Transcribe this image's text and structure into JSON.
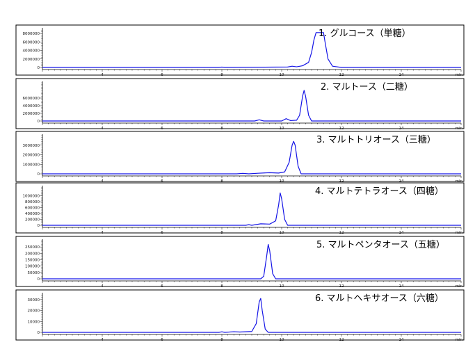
{
  "chart_data": [
    {
      "type": "line",
      "title": "1. グルコース（単糖）",
      "x_unit": "min",
      "xlim": [
        2,
        16
      ],
      "x_ticks": [
        4,
        6,
        8,
        10,
        12,
        14
      ],
      "x_tick_labels": [
        "4",
        "6",
        "8",
        "10",
        "12",
        "14"
      ],
      "ylim": [
        0,
        9000000
      ],
      "y_ticks": [
        0,
        2000000,
        4000000,
        6000000,
        8000000
      ],
      "y_tick_labels": [
        "0",
        "2000000",
        "4000000",
        "6000000",
        "8000000"
      ],
      "x": [
        2,
        7.9,
        8.0,
        8.1,
        10.2,
        10.35,
        10.5,
        10.7,
        10.9,
        11.0,
        11.08,
        11.15,
        11.2,
        11.3,
        11.4,
        11.45,
        11.55,
        11.7,
        12.0,
        16
      ],
      "y": [
        0,
        0,
        80000,
        0,
        100000,
        300000,
        150000,
        400000,
        1200000,
        3500000,
        6500000,
        8200000,
        8200000,
        8200000,
        8200000,
        6000000,
        2000000,
        300000,
        0,
        0
      ],
      "series_color": "#1414e6"
    },
    {
      "type": "line",
      "title": "2. マルトース（二糖）",
      "x_unit": "min",
      "xlim": [
        2,
        16
      ],
      "x_ticks": [
        4,
        6,
        8,
        10,
        12,
        14
      ],
      "x_tick_labels": [
        "4",
        "6",
        "8",
        "10",
        "12",
        "14"
      ],
      "ylim": [
        0,
        10000000
      ],
      "y_ticks": [
        0,
        2000000,
        4000000,
        6000000
      ],
      "y_tick_labels": [
        "0",
        "2000000",
        "4000000",
        "6000000"
      ],
      "x": [
        2,
        9.1,
        9.25,
        9.4,
        9.6,
        10.0,
        10.15,
        10.3,
        10.5,
        10.6,
        10.7,
        10.75,
        10.8,
        10.9,
        11.0,
        16
      ],
      "y": [
        0,
        0,
        300000,
        0,
        0,
        0,
        600000,
        100000,
        200000,
        1500000,
        6500000,
        8000000,
        6500000,
        1500000,
        0,
        0
      ],
      "series_color": "#1414e6"
    },
    {
      "type": "line",
      "title": "3. マルトトリオース（三糖）",
      "x_unit": "min",
      "xlim": [
        2,
        16
      ],
      "x_ticks": [
        4,
        6,
        8,
        10,
        12,
        14
      ],
      "x_tick_labels": [
        "4",
        "6",
        "8",
        "10",
        "12",
        "14"
      ],
      "ylim": [
        0,
        4000000
      ],
      "y_ticks": [
        0,
        1000000,
        2000000,
        3000000
      ],
      "y_tick_labels": [
        "0",
        "1000000",
        "2000000",
        "3000000"
      ],
      "x": [
        2,
        8.5,
        8.7,
        8.9,
        9.2,
        9.6,
        9.9,
        10.1,
        10.25,
        10.35,
        10.4,
        10.45,
        10.55,
        10.65,
        16
      ],
      "y": [
        0,
        0,
        50000,
        0,
        60000,
        120000,
        80000,
        200000,
        1200000,
        3000000,
        3400000,
        3000000,
        800000,
        0,
        0
      ],
      "series_color": "#1414e6"
    },
    {
      "type": "line",
      "title": "4. マルトテトラオース（四糖）",
      "x_unit": "min",
      "xlim": [
        2,
        16
      ],
      "x_ticks": [
        4,
        6,
        8,
        10,
        12,
        14
      ],
      "x_tick_labels": [
        "4",
        "6",
        "8",
        "10",
        "12",
        "14"
      ],
      "ylim": [
        0,
        1300000
      ],
      "y_ticks": [
        0,
        200000,
        400000,
        600000,
        800000,
        1000000
      ],
      "y_tick_labels": [
        "0",
        "200000",
        "400000",
        "600000",
        "800000",
        "1000000"
      ],
      "x": [
        2,
        8.8,
        8.9,
        9.0,
        9.3,
        9.6,
        9.8,
        9.9,
        9.95,
        10.0,
        10.1,
        10.2,
        16
      ],
      "y": [
        0,
        0,
        20000,
        0,
        50000,
        40000,
        150000,
        700000,
        1100000,
        900000,
        200000,
        0,
        0
      ],
      "series_color": "#1414e6"
    },
    {
      "type": "line",
      "title": "5. マルトペンタオース（五糖）",
      "x_unit": "min",
      "xlim": [
        2,
        16
      ],
      "x_ticks": [
        4,
        6,
        8,
        10,
        12,
        14
      ],
      "x_tick_labels": [
        "4",
        "6",
        "8",
        "10",
        "12",
        "14"
      ],
      "ylim": [
        0,
        300000
      ],
      "y_ticks": [
        0,
        50000,
        100000,
        150000,
        200000,
        250000
      ],
      "y_tick_labels": [
        "0",
        "50000",
        "100000",
        "150000",
        "200000",
        "250000"
      ],
      "x": [
        2,
        9.3,
        9.4,
        9.5,
        9.55,
        9.6,
        9.7,
        9.8,
        16
      ],
      "y": [
        0,
        0,
        20000,
        180000,
        270000,
        220000,
        40000,
        0,
        0
      ],
      "series_color": "#1414e6"
    },
    {
      "type": "line",
      "title": "6. マルトヘキサオース（六糖）",
      "x_unit": "min",
      "xlim": [
        2,
        16
      ],
      "x_ticks": [
        4,
        6,
        8,
        10,
        12,
        14
      ],
      "x_tick_labels": [
        "4",
        "6",
        "8",
        "10",
        "12",
        "14"
      ],
      "ylim": [
        0,
        35000
      ],
      "y_ticks": [
        0,
        10000,
        20000,
        30000
      ],
      "y_tick_labels": [
        "0",
        "10000",
        "20000",
        "30000"
      ],
      "x": [
        2,
        7.9,
        8.0,
        8.1,
        8.4,
        8.6,
        9.0,
        9.15,
        9.25,
        9.3,
        9.35,
        9.45,
        9.55,
        16
      ],
      "y": [
        0,
        0,
        500,
        0,
        600,
        300,
        800,
        8000,
        28000,
        31000,
        20000,
        3000,
        0,
        0
      ],
      "series_color": "#1414e6"
    }
  ]
}
